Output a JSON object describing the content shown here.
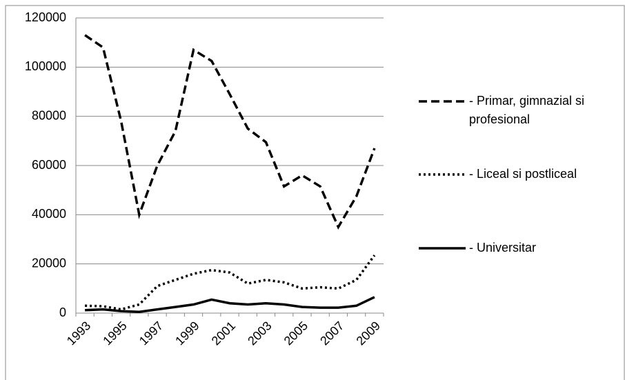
{
  "chart_data": {
    "type": "line",
    "categories": [
      "1993",
      null,
      "1995",
      null,
      "1997",
      null,
      "1999",
      null,
      "2001",
      null,
      "2003",
      null,
      "2005",
      null,
      "2007",
      null,
      "2009"
    ],
    "series": [
      {
        "name": "- Primar, gimnazial si profesional",
        "color": "#000000",
        "dash": "dashed",
        "values": [
          113000,
          108000,
          78000,
          40000,
          60000,
          74000,
          107000,
          102500,
          89000,
          75000,
          69500,
          51500,
          56000,
          51500,
          35000,
          47500,
          67000
        ]
      },
      {
        "name": "- Liceal si postliceal",
        "color": "#000000",
        "dash": "dotted",
        "values": [
          3000,
          2800,
          1500,
          3500,
          11000,
          13500,
          16000,
          17500,
          16500,
          12000,
          13500,
          12500,
          10000,
          10500,
          10000,
          13500,
          23500
        ]
      },
      {
        "name": "- Universitar",
        "color": "#000000",
        "dash": "solid",
        "values": [
          1200,
          1500,
          800,
          500,
          1500,
          2500,
          3500,
          5500,
          4000,
          3500,
          4000,
          3500,
          2500,
          2200,
          2200,
          3000,
          6500
        ]
      }
    ],
    "ylim": [
      0,
      120000
    ],
    "yticks": [
      0,
      20000,
      40000,
      60000,
      80000,
      100000,
      120000
    ],
    "grid": true,
    "legend": "right"
  }
}
